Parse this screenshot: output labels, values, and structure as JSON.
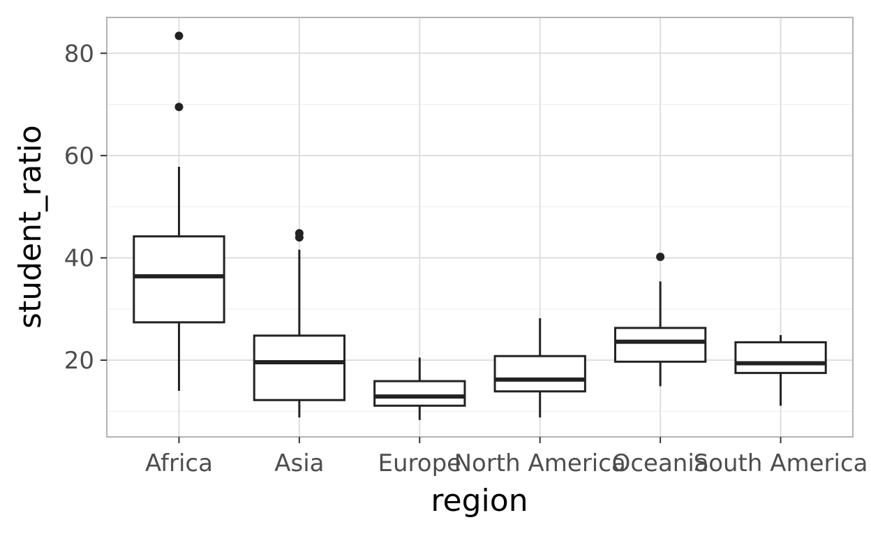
{
  "chart_data": {
    "type": "box",
    "title": "",
    "xlabel": "region",
    "ylabel": "student_ratio",
    "ylim": [
      5,
      87
    ],
    "yticks": [
      20,
      40,
      60,
      80
    ],
    "grid": true,
    "categories": [
      "Africa",
      "Asia",
      "Europe",
      "North America",
      "Oceania",
      "South America"
    ],
    "boxes": [
      {
        "category": "Africa",
        "whisker_low": 14,
        "q1": 27.4,
        "median": 36.4,
        "q3": 44.2,
        "whisker_high": 57.8,
        "outliers": [
          69.5,
          83.4
        ]
      },
      {
        "category": "Asia",
        "whisker_low": 8.8,
        "q1": 12.2,
        "median": 19.6,
        "q3": 24.8,
        "whisker_high": 41.6,
        "outliers": [
          44,
          44.8
        ]
      },
      {
        "category": "Europe",
        "whisker_low": 8.3,
        "q1": 11.1,
        "median": 12.9,
        "q3": 15.9,
        "whisker_high": 20.5,
        "outliers": []
      },
      {
        "category": "North America",
        "whisker_low": 8.8,
        "q1": 13.9,
        "median": 16.2,
        "q3": 20.8,
        "whisker_high": 28.2,
        "outliers": []
      },
      {
        "category": "Oceania",
        "whisker_low": 14.9,
        "q1": 19.7,
        "median": 23.6,
        "q3": 26.3,
        "whisker_high": 35.4,
        "outliers": [
          40.2
        ]
      },
      {
        "category": "South America",
        "whisker_low": 11.1,
        "q1": 17.5,
        "median": 19.4,
        "q3": 23.5,
        "whisker_high": 24.9,
        "outliers": []
      }
    ]
  }
}
